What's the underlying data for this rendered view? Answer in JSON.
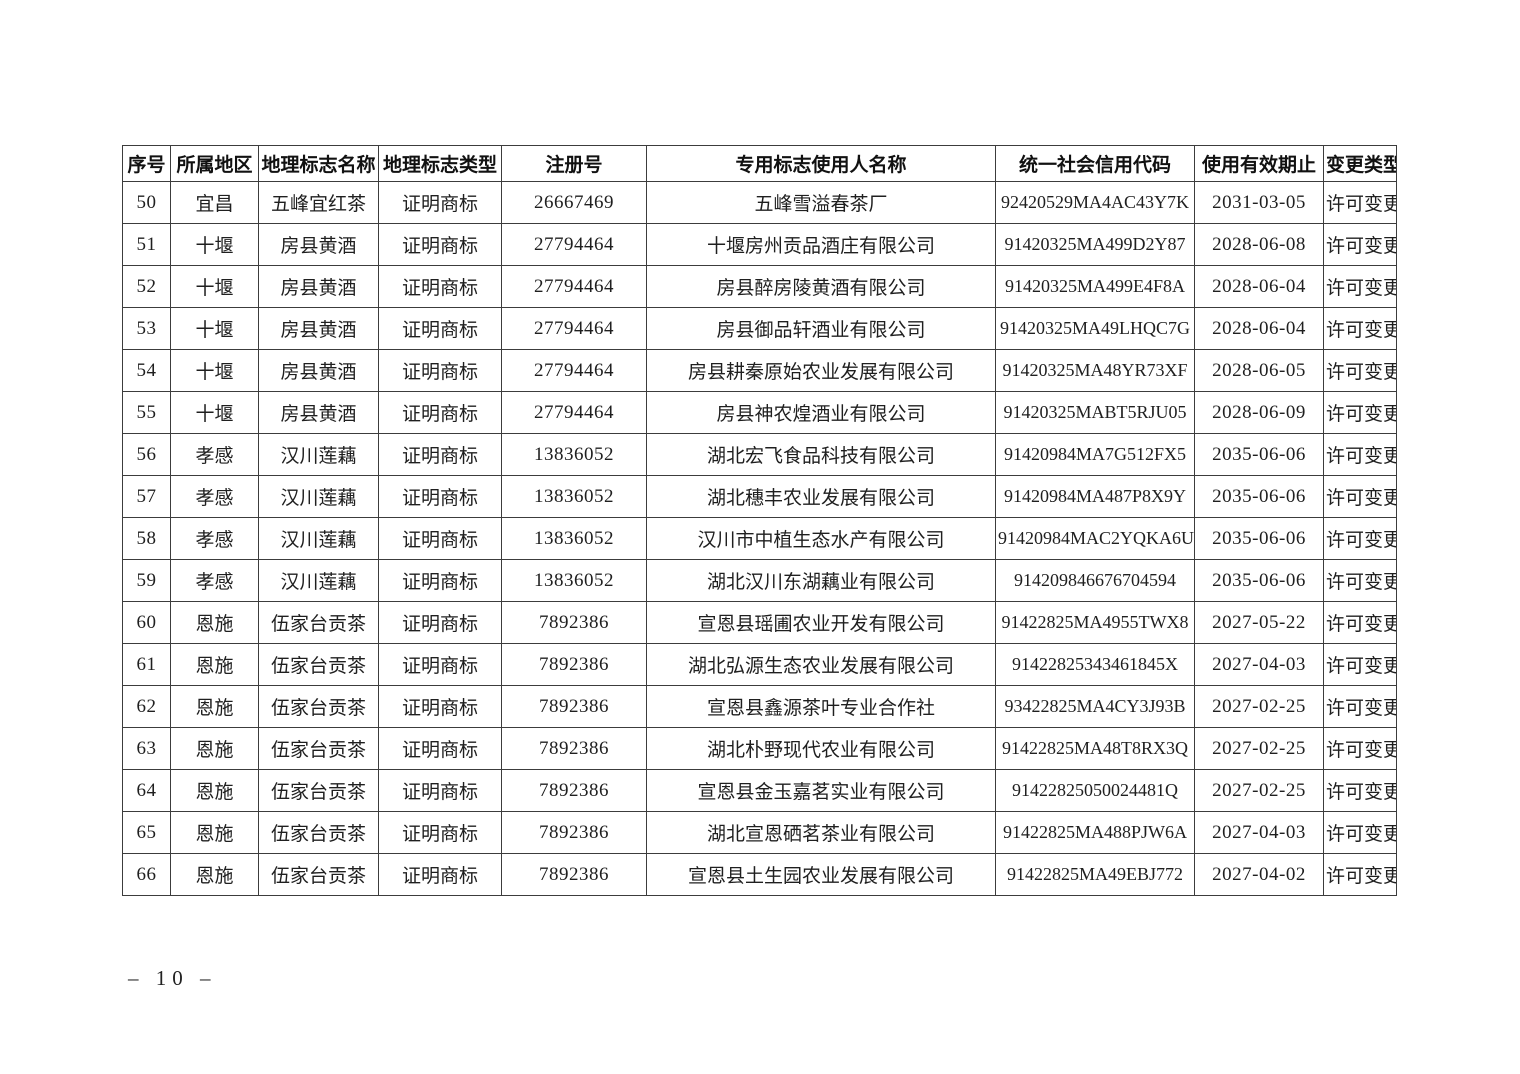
{
  "document": {
    "type": "geographical-indication-licensing-table",
    "footer": {
      "page_number_label": "– 10 –"
    }
  },
  "table": {
    "columns": [
      {
        "key": "index",
        "label": "序号"
      },
      {
        "key": "region",
        "label": "所属地区"
      },
      {
        "key": "gi_name",
        "label": "地理标志名称"
      },
      {
        "key": "gi_type",
        "label": "地理标志类型"
      },
      {
        "key": "reg_number",
        "label": "注册号"
      },
      {
        "key": "user_name",
        "label": "专用标志使用人名称"
      },
      {
        "key": "credit_code",
        "label": "统一社会信用代码"
      },
      {
        "key": "expiry_date",
        "label": "使用有效期止"
      },
      {
        "key": "change_type",
        "label": "变更类型"
      }
    ],
    "rows": [
      [
        "50",
        "宜昌",
        "五峰宜红茶",
        "证明商标",
        "26667469",
        "五峰雪溢春茶厂",
        "92420529MA4AC43Y7K",
        "2031-03-05",
        "许可变更"
      ],
      [
        "51",
        "十堰",
        "房县黄酒",
        "证明商标",
        "27794464",
        "十堰房州贡品酒庄有限公司",
        "91420325MA499D2Y87",
        "2028-06-08",
        "许可变更"
      ],
      [
        "52",
        "十堰",
        "房县黄酒",
        "证明商标",
        "27794464",
        "房县醉房陵黄酒有限公司",
        "91420325MA499E4F8A",
        "2028-06-04",
        "许可变更"
      ],
      [
        "53",
        "十堰",
        "房县黄酒",
        "证明商标",
        "27794464",
        "房县御品轩酒业有限公司",
        "91420325MA49LHQC7G",
        "2028-06-04",
        "许可变更"
      ],
      [
        "54",
        "十堰",
        "房县黄酒",
        "证明商标",
        "27794464",
        "房县耕秦原始农业发展有限公司",
        "91420325MA48YR73XF",
        "2028-06-05",
        "许可变更"
      ],
      [
        "55",
        "十堰",
        "房县黄酒",
        "证明商标",
        "27794464",
        "房县神农煌酒业有限公司",
        "91420325MABT5RJU05",
        "2028-06-09",
        "许可变更"
      ],
      [
        "56",
        "孝感",
        "汉川莲藕",
        "证明商标",
        "13836052",
        "湖北宏飞食品科技有限公司",
        "91420984MA7G512FX5",
        "2035-06-06",
        "许可变更"
      ],
      [
        "57",
        "孝感",
        "汉川莲藕",
        "证明商标",
        "13836052",
        "湖北穗丰农业发展有限公司",
        "91420984MA487P8X9Y",
        "2035-06-06",
        "许可变更"
      ],
      [
        "58",
        "孝感",
        "汉川莲藕",
        "证明商标",
        "13836052",
        "汉川市中植生态水产有限公司",
        "91420984MAC2YQKA6U",
        "2035-06-06",
        "许可变更"
      ],
      [
        "59",
        "孝感",
        "汉川莲藕",
        "证明商标",
        "13836052",
        "湖北汉川东湖藕业有限公司",
        "914209846676704594",
        "2035-06-06",
        "许可变更"
      ],
      [
        "60",
        "恩施",
        "伍家台贡茶",
        "证明商标",
        "7892386",
        "宣恩县瑶圃农业开发有限公司",
        "91422825MA4955TWX8",
        "2027-05-22",
        "许可变更"
      ],
      [
        "61",
        "恩施",
        "伍家台贡茶",
        "证明商标",
        "7892386",
        "湖北弘源生态农业发展有限公司",
        "91422825343461845X",
        "2027-04-03",
        "许可变更"
      ],
      [
        "62",
        "恩施",
        "伍家台贡茶",
        "证明商标",
        "7892386",
        "宣恩县鑫源茶叶专业合作社",
        "93422825MA4CY3J93B",
        "2027-02-25",
        "许可变更"
      ],
      [
        "63",
        "恩施",
        "伍家台贡茶",
        "证明商标",
        "7892386",
        "湖北朴野现代农业有限公司",
        "91422825MA48T8RX3Q",
        "2027-02-25",
        "许可变更"
      ],
      [
        "64",
        "恩施",
        "伍家台贡茶",
        "证明商标",
        "7892386",
        "宣恩县金玉嘉茗实业有限公司",
        "91422825050024481Q",
        "2027-02-25",
        "许可变更"
      ],
      [
        "65",
        "恩施",
        "伍家台贡茶",
        "证明商标",
        "7892386",
        "湖北宣恩硒茗茶业有限公司",
        "91422825MA488PJW6A",
        "2027-04-03",
        "许可变更"
      ],
      [
        "66",
        "恩施",
        "伍家台贡茶",
        "证明商标",
        "7892386",
        "宣恩县土生园农业发展有限公司",
        "91422825MA49EBJ772",
        "2027-04-02",
        "许可变更"
      ]
    ]
  }
}
